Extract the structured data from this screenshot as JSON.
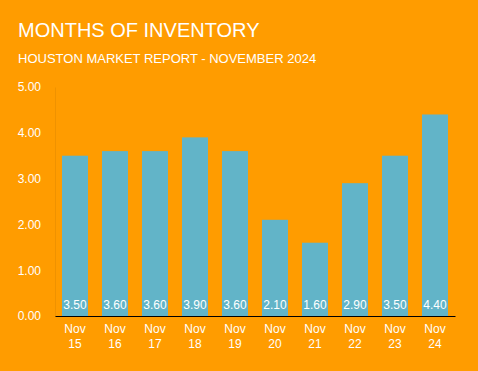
{
  "chart_data": {
    "type": "bar",
    "title": "MONTHS OF INVENTORY",
    "subtitle": "HOUSTON MARKET REPORT - NOVEMBER 2024",
    "categories": [
      "Nov 15",
      "Nov 16",
      "Nov 17",
      "Nov 18",
      "Nov 19",
      "Nov 20",
      "Nov 21",
      "Nov 22",
      "Nov 23",
      "Nov 24"
    ],
    "values": [
      3.5,
      3.6,
      3.6,
      3.9,
      3.6,
      2.1,
      1.6,
      2.9,
      3.5,
      4.4
    ],
    "value_labels": [
      "3.50",
      "3.60",
      "3.60",
      "3.90",
      "3.60",
      "2.10",
      "1.60",
      "2.90",
      "3.50",
      "4.40"
    ],
    "color": "#62b4c8",
    "ylim": [
      0,
      5
    ],
    "yticks": [
      {
        "value": 0,
        "label": "0.00"
      },
      {
        "value": 1,
        "label": "1.00"
      },
      {
        "value": 2,
        "label": "2.00"
      },
      {
        "value": 3,
        "label": "3.00"
      },
      {
        "value": 4,
        "label": "4.00"
      },
      {
        "value": 5,
        "label": "5.00"
      }
    ],
    "grid": false,
    "data_labels": true
  }
}
